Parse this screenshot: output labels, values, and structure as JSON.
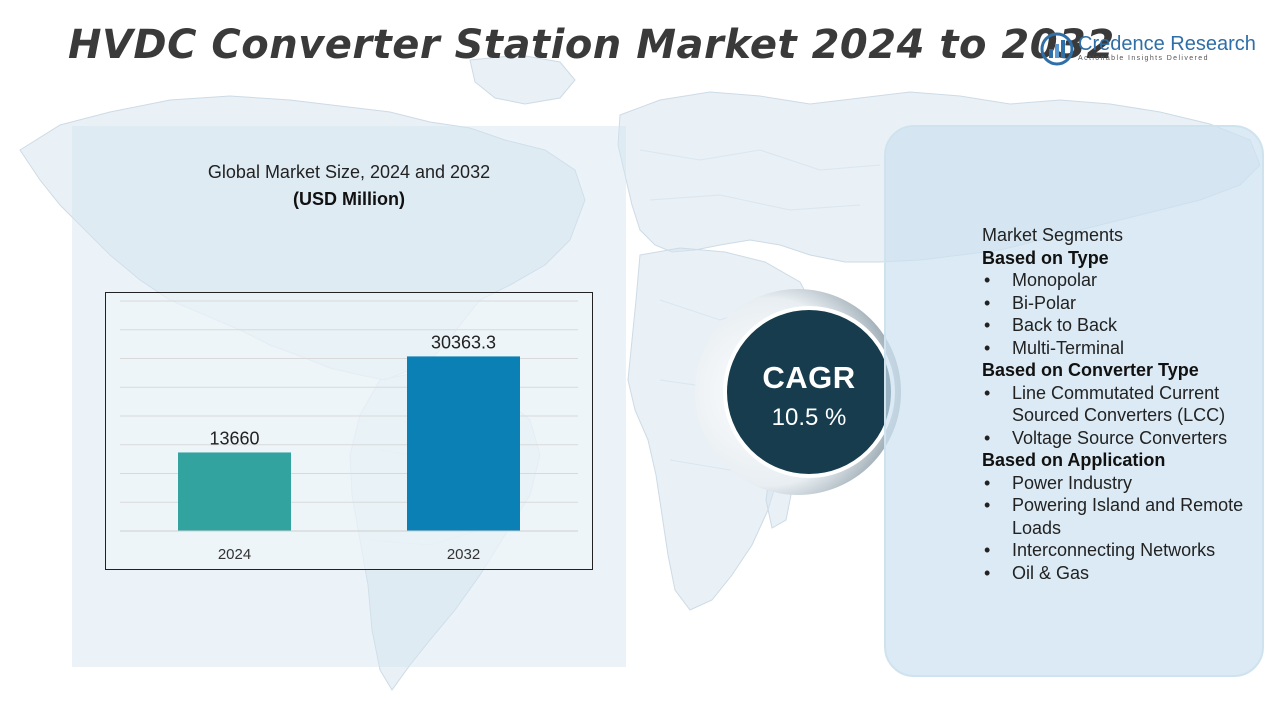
{
  "title": "HVDC Converter Station Market 2024 to 2032",
  "logo": {
    "name": "Credence Research",
    "tagline": "Actionable Insights Delivered",
    "icon": "credence-research-logo-icon",
    "color": "#2e6fa7"
  },
  "chart_data": {
    "type": "bar",
    "title": "Global Market Size, 2024 and 2032",
    "unit": "(USD Million)",
    "categories": [
      "2024",
      "2032"
    ],
    "values": [
      13660,
      30363.3
    ],
    "value_labels": [
      "13660",
      "30363.3"
    ],
    "colors": [
      "#33a3a0",
      "#0a80b4"
    ],
    "ylim": [
      0,
      40000
    ],
    "grid": true,
    "legend": "none",
    "xlabel": "",
    "ylabel": ""
  },
  "cagr": {
    "label": "CAGR",
    "value": "10.5 %",
    "color": "#163c4d"
  },
  "segments": {
    "heading": "Market Segments",
    "groups": [
      {
        "title": "Based on Type",
        "items": [
          "Monopolar",
          "Bi-Polar",
          "Back to Back",
          "Multi-Terminal"
        ]
      },
      {
        "title": "Based on Converter Type",
        "items": [
          "Line Commutated Current Sourced Converters (LCC)",
          "Voltage Source Converters"
        ]
      },
      {
        "title": "Based on Application",
        "items": [
          "Power Industry",
          "Powering Island and Remote Loads",
          "Interconnecting Networks",
          "Oil & Gas"
        ]
      }
    ]
  }
}
